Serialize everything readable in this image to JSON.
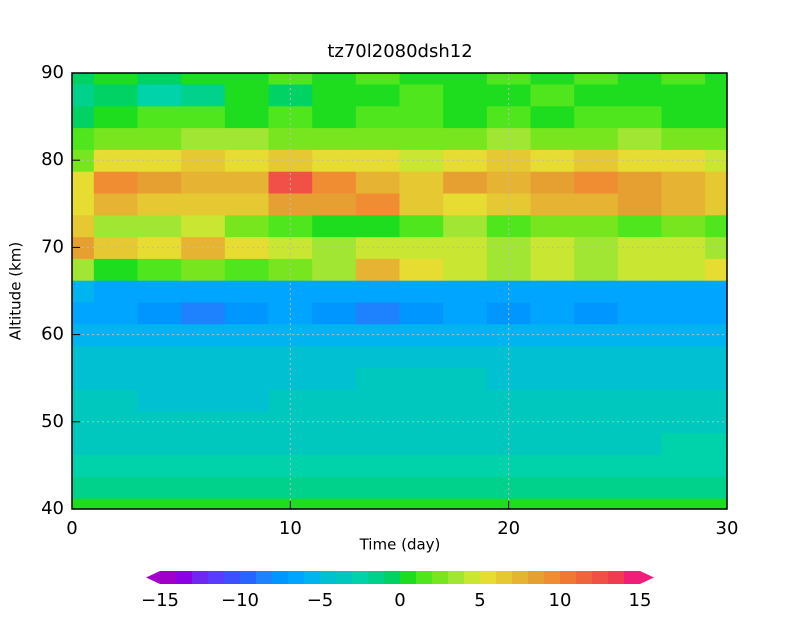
{
  "chart_data": {
    "type": "contour",
    "title": "tz70l2080dsh12",
    "xlabel": "Time (day)",
    "ylabel": "Altitude (km)",
    "xlim": [
      0,
      30
    ],
    "ylim": [
      40,
      90
    ],
    "xticks": [
      0,
      10,
      20,
      30
    ],
    "yticks": [
      40,
      50,
      60,
      70,
      80,
      90
    ],
    "grid": true,
    "x": [
      0,
      2,
      4,
      6,
      8,
      10,
      12,
      14,
      16,
      18,
      20,
      22,
      24,
      26,
      28,
      30
    ],
    "y": [
      40,
      42.5,
      45,
      47.5,
      50,
      52.5,
      55,
      57.5,
      60,
      62.5,
      65,
      67.5,
      70,
      72.5,
      75,
      77.5,
      80,
      82.5,
      85,
      87.5,
      90
    ],
    "z": [
      [
        0,
        0,
        0,
        0,
        0,
        0,
        0,
        0,
        0,
        0,
        0,
        0,
        0,
        0,
        0,
        0
      ],
      [
        -2,
        -2,
        -2,
        -2,
        -2,
        -2,
        -2,
        -2,
        -2,
        -2,
        -2,
        -2,
        -2,
        -2,
        -2,
        -2
      ],
      [
        -3,
        -3,
        -3,
        -3,
        -3,
        -3,
        -3,
        -3,
        -3,
        -3,
        -3,
        -3,
        -3,
        -3,
        -3,
        -3
      ],
      [
        -4,
        -4,
        -4,
        -4,
        -4,
        -4,
        -4,
        -4,
        -4,
        -4,
        -4,
        -4,
        -4,
        -4,
        -3,
        -3
      ],
      [
        -4,
        -4,
        -4,
        -4,
        -4,
        -4,
        -4,
        -4,
        -4,
        -4,
        -4,
        -4,
        -4,
        -4,
        -4,
        -4
      ],
      [
        -4,
        -4,
        -5,
        -5,
        -5,
        -4,
        -4,
        -4,
        -4,
        -4,
        -4,
        -4,
        -4,
        -4,
        -4,
        -4
      ],
      [
        -5,
        -5,
        -5,
        -5,
        -5,
        -5,
        -5,
        -4,
        -4,
        -4,
        -5,
        -5,
        -5,
        -5,
        -5,
        -5
      ],
      [
        -5,
        -5,
        -5,
        -5,
        -5,
        -5,
        -5,
        -5,
        -5,
        -5,
        -5,
        -5,
        -5,
        -5,
        -5,
        -5
      ],
      [
        -6,
        -6,
        -6,
        -6,
        -6,
        -6,
        -6,
        -6,
        -6,
        -6,
        -6,
        -6,
        -6,
        -6,
        -6,
        -6
      ],
      [
        -7,
        -7,
        -8,
        -9,
        -8,
        -7,
        -8,
        -9,
        -8,
        -7,
        -8,
        -7,
        -8,
        -7,
        -7,
        -7
      ],
      [
        -6,
        -7,
        -7,
        -7,
        -7,
        -7,
        -7,
        -7,
        -7,
        -7,
        -7,
        -7,
        -7,
        -7,
        -7,
        -7
      ],
      [
        3,
        0,
        1,
        2,
        1,
        2,
        3,
        7,
        5,
        4,
        3,
        4,
        3,
        4,
        4,
        5
      ],
      [
        8,
        6,
        5,
        7,
        5,
        4,
        3,
        4,
        4,
        4,
        3,
        4,
        3,
        4,
        4,
        3
      ],
      [
        6,
        3,
        3,
        4,
        2,
        1,
        0,
        0,
        1,
        3,
        1,
        2,
        2,
        1,
        2,
        1
      ],
      [
        5,
        7,
        6,
        6,
        6,
        8,
        8,
        9,
        6,
        5,
        6,
        7,
        7,
        8,
        7,
        6
      ],
      [
        5,
        9,
        8,
        7,
        7,
        12,
        9,
        7,
        6,
        8,
        7,
        8,
        9,
        8,
        7,
        6
      ],
      [
        2,
        5,
        5,
        6,
        5,
        6,
        5,
        5,
        4,
        5,
        6,
        5,
        6,
        5,
        5,
        4
      ],
      [
        1,
        2,
        2,
        3,
        3,
        2,
        2,
        2,
        2,
        2,
        3,
        2,
        2,
        3,
        2,
        2
      ],
      [
        -1,
        0,
        1,
        1,
        0,
        1,
        0,
        1,
        1,
        0,
        1,
        0,
        1,
        1,
        0,
        0
      ],
      [
        -2,
        -1,
        -3,
        -2,
        0,
        -1,
        0,
        0,
        1,
        0,
        0,
        1,
        0,
        0,
        0,
        0
      ],
      [
        -1,
        0,
        -1,
        0,
        0,
        1,
        0,
        1,
        0,
        0,
        1,
        0,
        1,
        0,
        1,
        0
      ]
    ],
    "clim": [
      -15,
      15
    ],
    "colors": [
      "#a000c8",
      "#8c00e6",
      "#6e28f0",
      "#5a3cff",
      "#3c50ff",
      "#2864ff",
      "#1e82ff",
      "#0096ff",
      "#00a5ff",
      "#00b4f0",
      "#00c0d2",
      "#00c8be",
      "#00d2aa",
      "#00d28c",
      "#00d264",
      "#1edc1e",
      "#50e61e",
      "#78e61e",
      "#a0e632",
      "#c8e632",
      "#e6dc32",
      "#e6c832",
      "#e6b432",
      "#e6a032",
      "#f08c32",
      "#f07832",
      "#f0643c",
      "#f05046",
      "#f03c50",
      "#f01e78"
    ],
    "colorbar_ticks": [
      {
        "value": -15,
        "label": "−15"
      },
      {
        "value": -10,
        "label": "−10"
      },
      {
        "value": -5,
        "label": "−5"
      },
      0,
      5,
      10,
      15
    ]
  }
}
